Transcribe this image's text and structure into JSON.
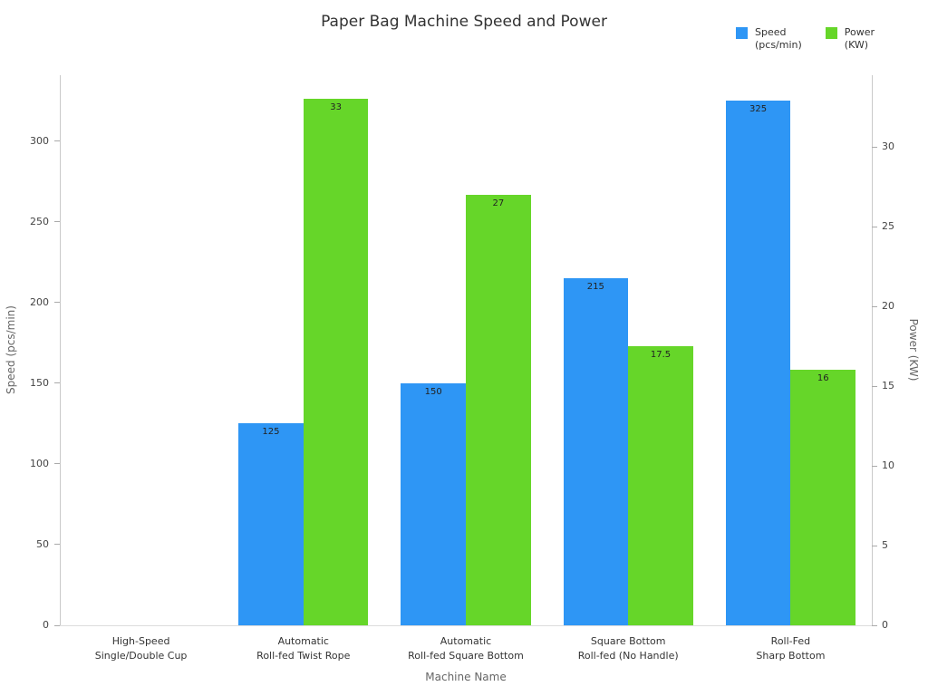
{
  "title": "Paper Bag Machine Speed and Power",
  "legend": [
    {
      "label": "Speed\n(pcs/min)",
      "color": "#2e96f5"
    },
    {
      "label": "Power\n(KW)",
      "color": "#66d629"
    }
  ],
  "chart_data": {
    "type": "bar",
    "title": "Paper Bag Machine Speed and Power",
    "xlabel": "Machine Name",
    "ylabel_left": "Speed (pcs/min)",
    "ylabel_right": "Power (KW)",
    "categories": [
      "High-Speed\nSingle/Double Cup",
      "Automatic\nRoll-fed Twist Rope",
      "Automatic\nRoll-fed Square Bottom",
      "Square Bottom\nRoll-fed (No Handle)",
      "Roll-Fed\nSharp Bottom"
    ],
    "series": [
      {
        "name": "Speed (pcs/min)",
        "axis": "left",
        "color": "#2e96f5",
        "values": [
          0,
          125,
          150,
          215,
          325
        ]
      },
      {
        "name": "Power (KW)",
        "axis": "right",
        "color": "#66d629",
        "values": [
          0,
          33,
          27,
          17.5,
          16
        ]
      }
    ],
    "left_axis": {
      "ticks": [
        0,
        50,
        100,
        150,
        200,
        250,
        300
      ],
      "max": 341
    },
    "right_axis": {
      "ticks": [
        0,
        5,
        10,
        15,
        20,
        25,
        30
      ],
      "max": 34.5
    },
    "legend_position": "top-right",
    "grid": false
  }
}
